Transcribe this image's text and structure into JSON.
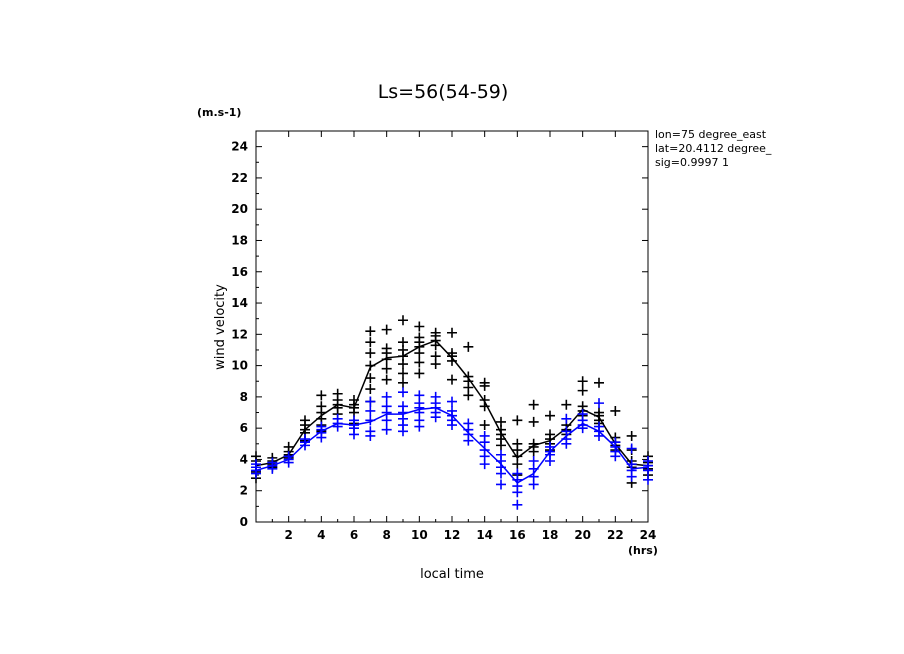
{
  "chart_data": {
    "type": "scatter",
    "title": "Ls=56(54-59)",
    "xlabel": "local time",
    "ylabel": "wind velocity",
    "y_unit": "(m.s-1)",
    "x_unit": "(hrs)",
    "xlim": [
      0,
      24
    ],
    "ylim": [
      0,
      25
    ],
    "x_ticks": [
      2,
      4,
      6,
      8,
      10,
      12,
      14,
      16,
      18,
      20,
      22,
      24
    ],
    "y_ticks": [
      0,
      2,
      4,
      6,
      8,
      10,
      12,
      14,
      16,
      18,
      20,
      22,
      24
    ],
    "grid": false,
    "annotations": [
      "lon=75 degree_east",
      "lat=20.4112 degree_",
      "sig=0.9997 1"
    ],
    "series": [
      {
        "color": "#000000",
        "line": [
          [
            0,
            3.6
          ],
          [
            1,
            3.8
          ],
          [
            2,
            4.3
          ],
          [
            3,
            5.9
          ],
          [
            4,
            6.8
          ],
          [
            5,
            7.5
          ],
          [
            6,
            7.3
          ],
          [
            7,
            9.9
          ],
          [
            8,
            10.5
          ],
          [
            9,
            10.6
          ],
          [
            10,
            11.2
          ],
          [
            11,
            11.6
          ],
          [
            12,
            10.5
          ],
          [
            13,
            9.2
          ],
          [
            14,
            7.7
          ],
          [
            15,
            5.7
          ],
          [
            16,
            4.1
          ],
          [
            17,
            4.9
          ],
          [
            18,
            5.2
          ],
          [
            19,
            6.0
          ],
          [
            20,
            7.2
          ],
          [
            21,
            6.7
          ],
          [
            22,
            5.0
          ],
          [
            23,
            3.7
          ],
          [
            24,
            3.6
          ]
        ],
        "points": [
          [
            0,
            4.2
          ],
          [
            0,
            3.9
          ],
          [
            0,
            3.5
          ],
          [
            0,
            3.2
          ],
          [
            0,
            2.8
          ],
          [
            1,
            4.1
          ],
          [
            1,
            3.9
          ],
          [
            1,
            3.7
          ],
          [
            1,
            3.5
          ],
          [
            2,
            4.8
          ],
          [
            2,
            4.5
          ],
          [
            2,
            4.3
          ],
          [
            2,
            4.1
          ],
          [
            3,
            6.5
          ],
          [
            3,
            6.2
          ],
          [
            3,
            5.9
          ],
          [
            3,
            5.7
          ],
          [
            3,
            5.2
          ],
          [
            4,
            8.1
          ],
          [
            4,
            7.4
          ],
          [
            4,
            7.0
          ],
          [
            4,
            6.6
          ],
          [
            4,
            6.2
          ],
          [
            4,
            5.8
          ],
          [
            5,
            8.2
          ],
          [
            5,
            7.8
          ],
          [
            5,
            7.5
          ],
          [
            5,
            7.3
          ],
          [
            5,
            6.9
          ],
          [
            6,
            7.8
          ],
          [
            6,
            7.5
          ],
          [
            6,
            7.3
          ],
          [
            6,
            7.0
          ],
          [
            6,
            6.3
          ],
          [
            7,
            12.2
          ],
          [
            7,
            11.5
          ],
          [
            7,
            10.8
          ],
          [
            7,
            10.0
          ],
          [
            7,
            9.2
          ],
          [
            7,
            8.5
          ],
          [
            7,
            7.7
          ],
          [
            8,
            12.3
          ],
          [
            8,
            11.1
          ],
          [
            8,
            10.8
          ],
          [
            8,
            10.4
          ],
          [
            8,
            9.8
          ],
          [
            8,
            9.1
          ],
          [
            9,
            12.9
          ],
          [
            9,
            11.5
          ],
          [
            9,
            11.0
          ],
          [
            9,
            10.6
          ],
          [
            9,
            10.1
          ],
          [
            9,
            9.5
          ],
          [
            9,
            8.9
          ],
          [
            10,
            12.5
          ],
          [
            10,
            11.8
          ],
          [
            10,
            11.5
          ],
          [
            10,
            11.2
          ],
          [
            10,
            10.8
          ],
          [
            10,
            10.2
          ],
          [
            10,
            9.5
          ],
          [
            11,
            12.1
          ],
          [
            11,
            11.9
          ],
          [
            11,
            11.6
          ],
          [
            11,
            11.3
          ],
          [
            11,
            10.6
          ],
          [
            11,
            10.1
          ],
          [
            12,
            12.1
          ],
          [
            12,
            10.8
          ],
          [
            12,
            10.6
          ],
          [
            12,
            10.3
          ],
          [
            12,
            9.1
          ],
          [
            13,
            11.2
          ],
          [
            13,
            9.3
          ],
          [
            13,
            9.0
          ],
          [
            13,
            8.6
          ],
          [
            13,
            8.1
          ],
          [
            14,
            8.9
          ],
          [
            14,
            8.7
          ],
          [
            14,
            7.8
          ],
          [
            14,
            7.4
          ],
          [
            14,
            6.2
          ],
          [
            15,
            6.4
          ],
          [
            15,
            5.9
          ],
          [
            15,
            5.6
          ],
          [
            15,
            5.3
          ],
          [
            15,
            4.9
          ],
          [
            16,
            6.5
          ],
          [
            16,
            5.0
          ],
          [
            16,
            4.6
          ],
          [
            16,
            4.2
          ],
          [
            16,
            3.7
          ],
          [
            16,
            3.0
          ],
          [
            17,
            7.5
          ],
          [
            17,
            6.4
          ],
          [
            17,
            5.0
          ],
          [
            17,
            4.8
          ],
          [
            17,
            4.5
          ],
          [
            18,
            6.8
          ],
          [
            18,
            5.6
          ],
          [
            18,
            5.3
          ],
          [
            18,
            5.0
          ],
          [
            18,
            4.6
          ],
          [
            19,
            7.5
          ],
          [
            19,
            6.2
          ],
          [
            19,
            5.9
          ],
          [
            19,
            5.6
          ],
          [
            20,
            9.0
          ],
          [
            20,
            8.4
          ],
          [
            20,
            7.4
          ],
          [
            20,
            7.1
          ],
          [
            20,
            6.8
          ],
          [
            21,
            8.9
          ],
          [
            21,
            7.0
          ],
          [
            21,
            6.8
          ],
          [
            21,
            6.5
          ],
          [
            21,
            6.3
          ],
          [
            22,
            7.1
          ],
          [
            22,
            5.4
          ],
          [
            22,
            5.1
          ],
          [
            22,
            4.9
          ],
          [
            22,
            4.6
          ],
          [
            23,
            5.5
          ],
          [
            23,
            4.6
          ],
          [
            23,
            3.9
          ],
          [
            23,
            3.5
          ],
          [
            23,
            2.5
          ],
          [
            24,
            4.2
          ],
          [
            24,
            3.8
          ],
          [
            24,
            3.6
          ],
          [
            24,
            3.4
          ],
          [
            24,
            3.0
          ]
        ]
      },
      {
        "color": "#0000ff",
        "line": [
          [
            0,
            3.3
          ],
          [
            1,
            3.6
          ],
          [
            2,
            4.0
          ],
          [
            3,
            5.0
          ],
          [
            4,
            5.8
          ],
          [
            5,
            6.3
          ],
          [
            6,
            6.2
          ],
          [
            7,
            6.4
          ],
          [
            8,
            6.9
          ],
          [
            9,
            6.9
          ],
          [
            10,
            7.2
          ],
          [
            11,
            7.3
          ],
          [
            12,
            6.8
          ],
          [
            13,
            5.7
          ],
          [
            14,
            4.7
          ],
          [
            15,
            3.7
          ],
          [
            16,
            2.5
          ],
          [
            17,
            3.1
          ],
          [
            18,
            4.5
          ],
          [
            19,
            5.5
          ],
          [
            20,
            6.3
          ],
          [
            21,
            5.8
          ],
          [
            22,
            4.8
          ],
          [
            23,
            3.4
          ],
          [
            24,
            3.5
          ]
        ],
        "points": [
          [
            0,
            3.7
          ],
          [
            0,
            3.5
          ],
          [
            0,
            3.3
          ],
          [
            0,
            3.1
          ],
          [
            1,
            3.8
          ],
          [
            1,
            3.6
          ],
          [
            1,
            3.4
          ],
          [
            2,
            4.2
          ],
          [
            2,
            4.0
          ],
          [
            2,
            3.8
          ],
          [
            3,
            5.3
          ],
          [
            3,
            5.1
          ],
          [
            3,
            4.9
          ],
          [
            4,
            6.1
          ],
          [
            4,
            5.9
          ],
          [
            4,
            5.7
          ],
          [
            4,
            5.4
          ],
          [
            5,
            6.6
          ],
          [
            5,
            6.3
          ],
          [
            5,
            6.1
          ],
          [
            6,
            6.5
          ],
          [
            6,
            6.2
          ],
          [
            6,
            6.0
          ],
          [
            6,
            5.6
          ],
          [
            7,
            7.7
          ],
          [
            7,
            7.1
          ],
          [
            7,
            6.5
          ],
          [
            7,
            5.8
          ],
          [
            7,
            5.5
          ],
          [
            8,
            8.0
          ],
          [
            8,
            7.4
          ],
          [
            8,
            7.0
          ],
          [
            8,
            6.5
          ],
          [
            8,
            5.9
          ],
          [
            9,
            8.3
          ],
          [
            9,
            7.4
          ],
          [
            9,
            7.0
          ],
          [
            9,
            6.6
          ],
          [
            9,
            6.2
          ],
          [
            9,
            5.8
          ],
          [
            10,
            8.1
          ],
          [
            10,
            7.6
          ],
          [
            10,
            7.3
          ],
          [
            10,
            7.0
          ],
          [
            10,
            6.5
          ],
          [
            10,
            6.1
          ],
          [
            11,
            8.0
          ],
          [
            11,
            7.6
          ],
          [
            11,
            7.3
          ],
          [
            11,
            7.0
          ],
          [
            11,
            6.7
          ],
          [
            12,
            7.7
          ],
          [
            12,
            7.1
          ],
          [
            12,
            6.8
          ],
          [
            12,
            6.5
          ],
          [
            12,
            6.2
          ],
          [
            13,
            6.3
          ],
          [
            13,
            5.9
          ],
          [
            13,
            5.6
          ],
          [
            13,
            5.2
          ],
          [
            14,
            5.5
          ],
          [
            14,
            5.1
          ],
          [
            14,
            4.6
          ],
          [
            14,
            4.2
          ],
          [
            14,
            3.7
          ],
          [
            15,
            4.3
          ],
          [
            15,
            3.9
          ],
          [
            15,
            3.5
          ],
          [
            15,
            3.1
          ],
          [
            15,
            2.4
          ],
          [
            16,
            3.1
          ],
          [
            16,
            2.7
          ],
          [
            16,
            2.3
          ],
          [
            16,
            1.9
          ],
          [
            16,
            1.1
          ],
          [
            17,
            3.9
          ],
          [
            17,
            3.4
          ],
          [
            17,
            2.9
          ],
          [
            17,
            2.4
          ],
          [
            18,
            4.8
          ],
          [
            18,
            4.5
          ],
          [
            18,
            4.3
          ],
          [
            18,
            3.9
          ],
          [
            19,
            6.6
          ],
          [
            19,
            5.8
          ],
          [
            19,
            5.3
          ],
          [
            19,
            5.0
          ],
          [
            20,
            6.9
          ],
          [
            20,
            6.5
          ],
          [
            20,
            6.2
          ],
          [
            20,
            6.0
          ],
          [
            21,
            7.6
          ],
          [
            21,
            6.1
          ],
          [
            21,
            5.8
          ],
          [
            21,
            5.5
          ],
          [
            22,
            5.1
          ],
          [
            22,
            4.8
          ],
          [
            22,
            4.5
          ],
          [
            22,
            4.2
          ],
          [
            23,
            4.7
          ],
          [
            23,
            3.7
          ],
          [
            23,
            3.3
          ],
          [
            23,
            2.9
          ],
          [
            24,
            3.9
          ],
          [
            24,
            3.6
          ],
          [
            24,
            3.3
          ],
          [
            24,
            2.7
          ]
        ]
      }
    ]
  }
}
